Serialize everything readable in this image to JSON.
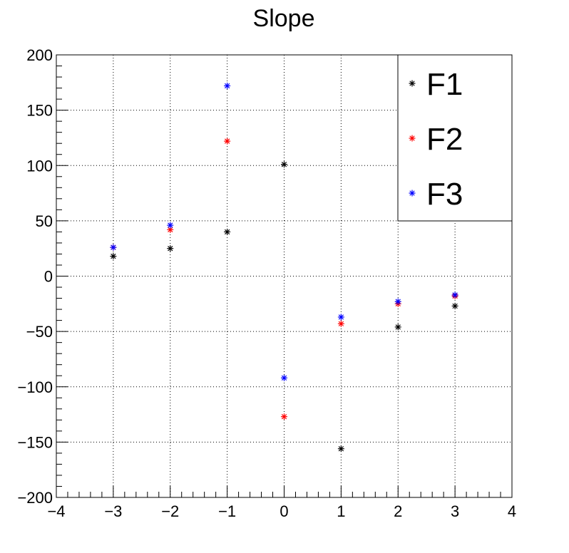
{
  "chart_data": {
    "type": "scatter",
    "title": "Slope",
    "xlabel": "",
    "ylabel": "",
    "xlim": [
      -4,
      4
    ],
    "ylim": [
      -200,
      200
    ],
    "x_ticks": [
      -4,
      -3,
      -2,
      -1,
      0,
      1,
      2,
      3,
      4
    ],
    "x_tick_labels": [
      "−4",
      "−3",
      "−2",
      "−1",
      "0",
      "1",
      "2",
      "3",
      "4"
    ],
    "y_ticks": [
      -200,
      -150,
      -100,
      -50,
      0,
      50,
      100,
      150,
      200
    ],
    "y_tick_labels": [
      "−200",
      "−150",
      "−100",
      "−50",
      "0",
      "50",
      "100",
      "150",
      "200"
    ],
    "grid": true,
    "legend_position": "top-right",
    "series": [
      {
        "name": "F1",
        "color": "#000000",
        "x": [
          -3,
          -2,
          -1,
          0,
          1,
          2,
          3
        ],
        "y": [
          18,
          25,
          40,
          101,
          -156,
          -46,
          -27
        ]
      },
      {
        "name": "F2",
        "color": "#ff0000",
        "x": [
          -3,
          -2,
          -1,
          0,
          1,
          2,
          3
        ],
        "y": [
          26,
          42,
          122,
          -127,
          -43,
          -25,
          -18
        ]
      },
      {
        "name": "F3",
        "color": "#0000ff",
        "x": [
          -3,
          -2,
          -1,
          0,
          1,
          2,
          3
        ],
        "y": [
          26,
          46,
          172,
          -92,
          -37,
          -23,
          -17
        ]
      }
    ]
  }
}
